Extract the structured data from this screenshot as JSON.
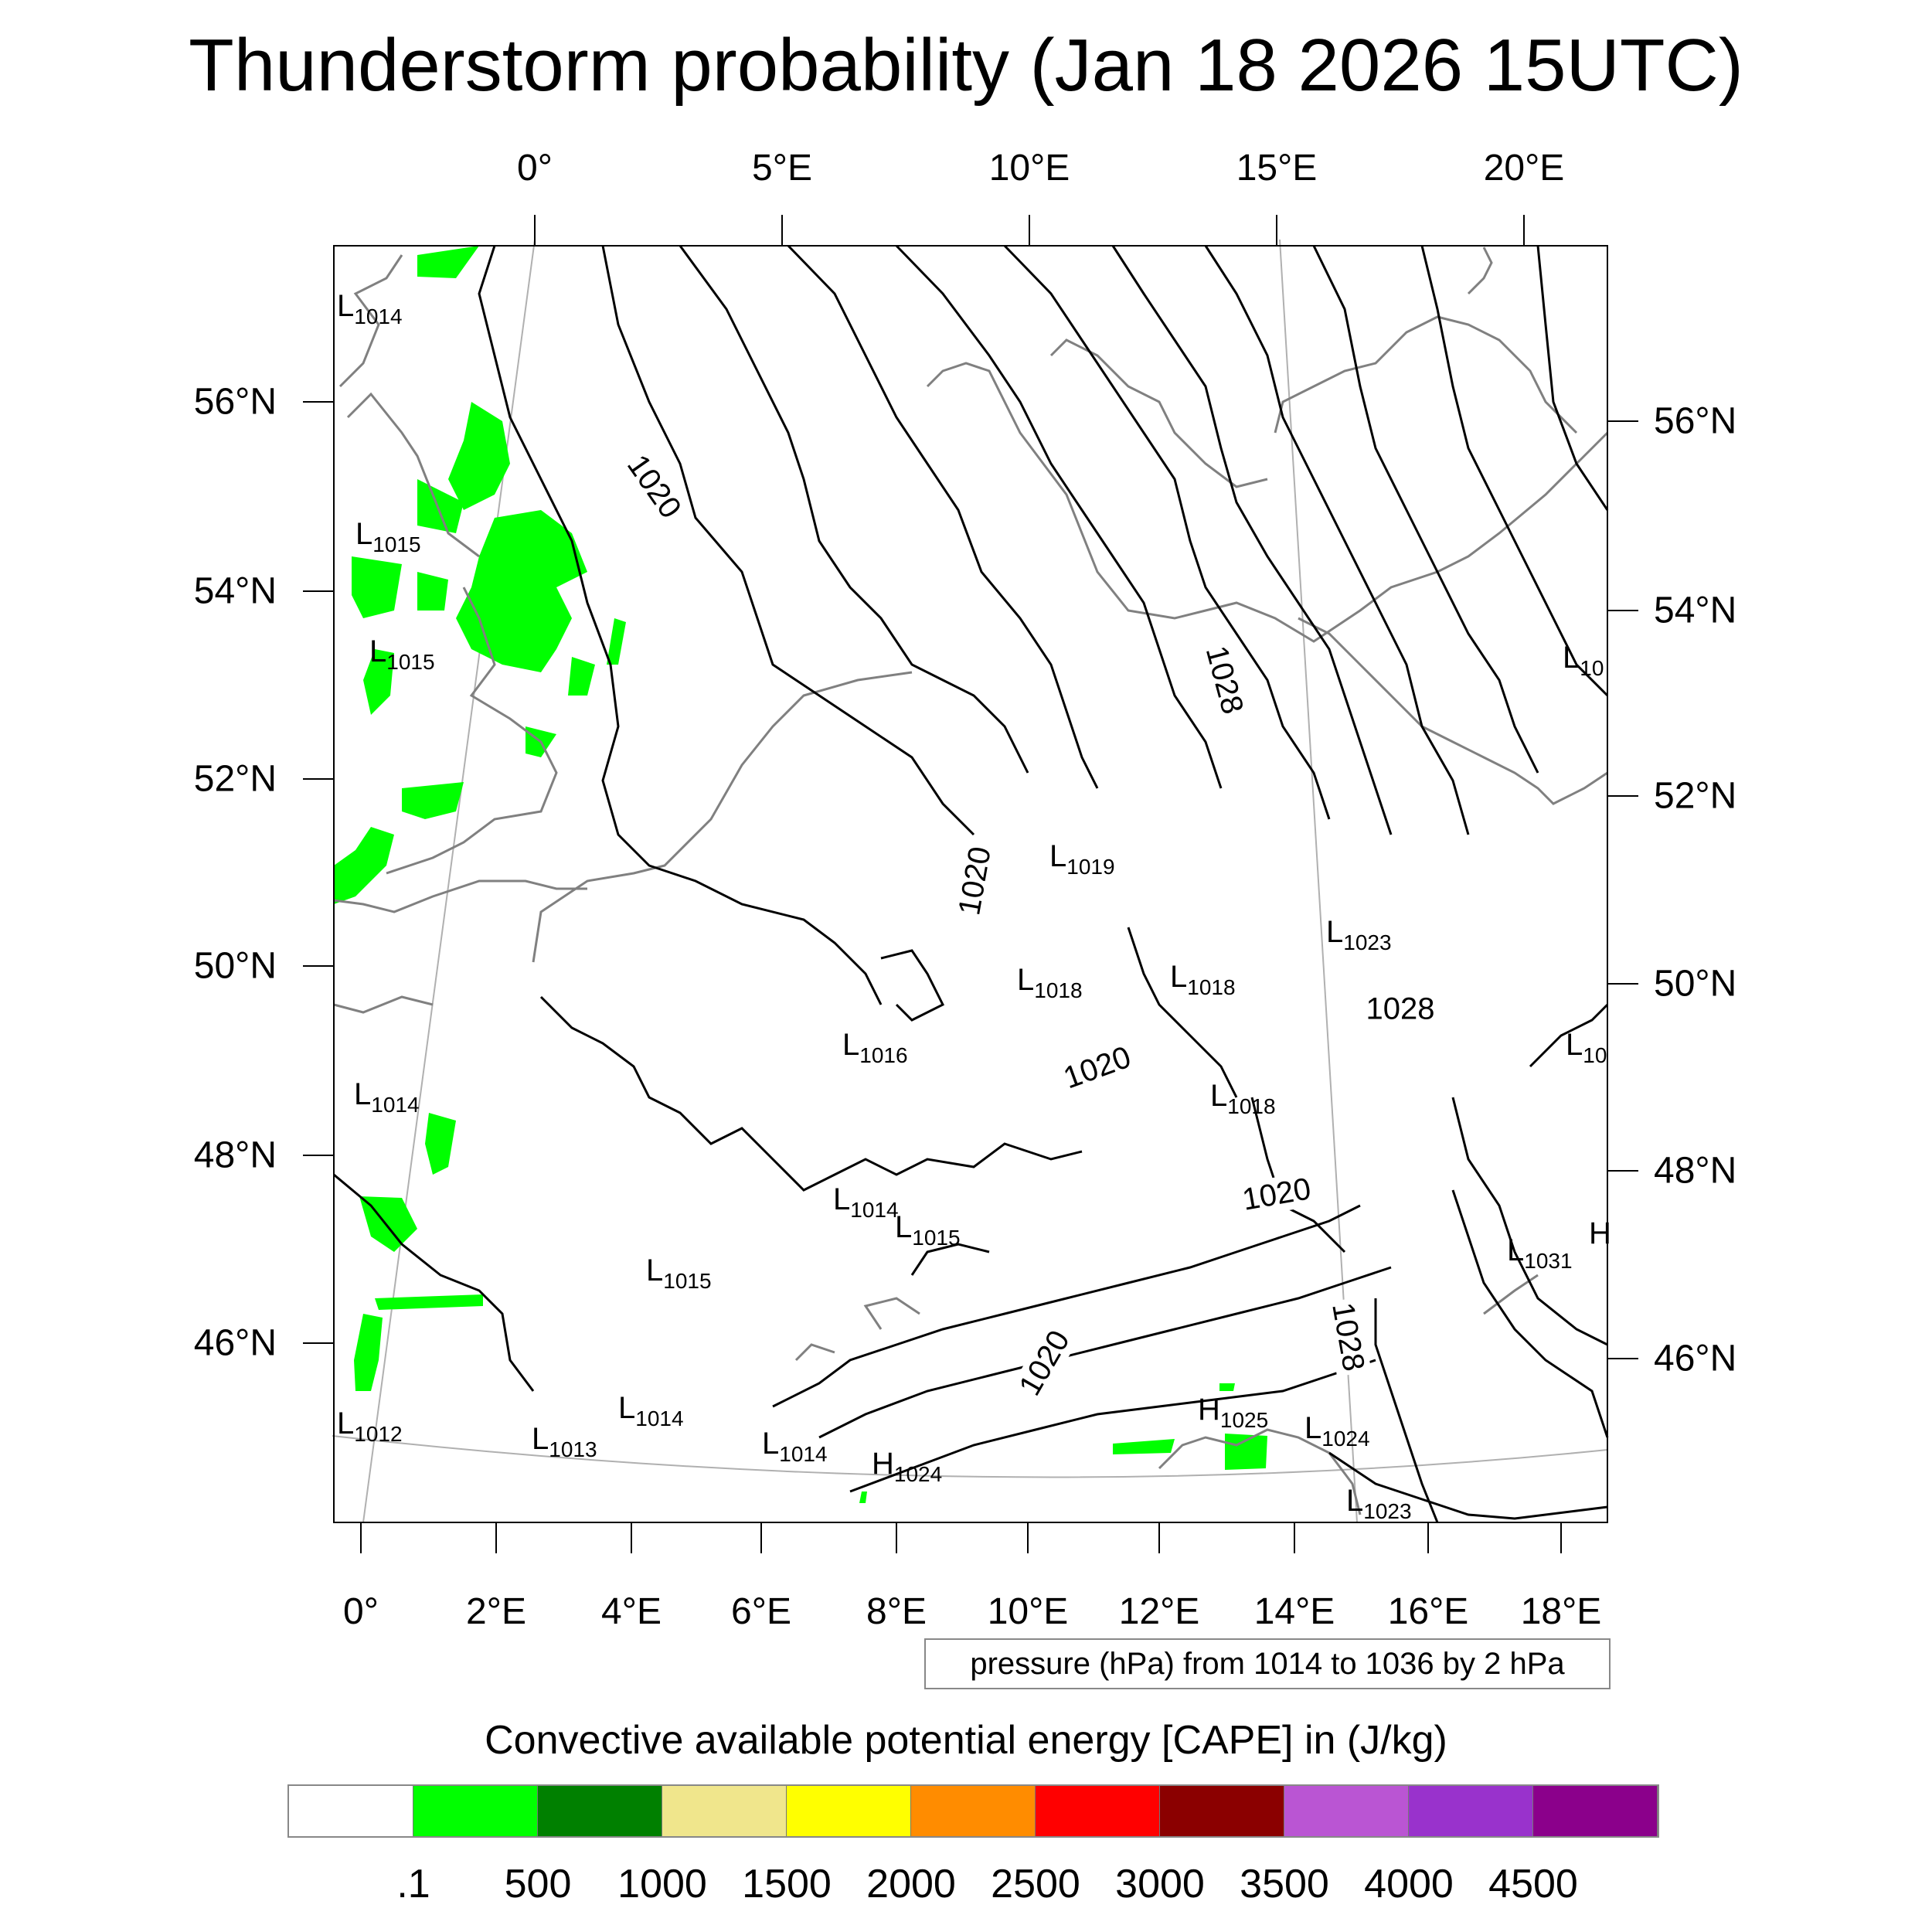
{
  "title": "Thunderstorm probability (Jan 18 2026 15UTC)",
  "axes": {
    "top_lon_labels": [
      "0°",
      "5°E",
      "10°E",
      "15°E",
      "20°E"
    ],
    "bottom_lon_labels": [
      "0°",
      "2°E",
      "4°E",
      "6°E",
      "8°E",
      "10°E",
      "12°E",
      "14°E",
      "16°E",
      "18°E"
    ],
    "left_lat_labels": [
      "56°N",
      "54°N",
      "52°N",
      "50°N",
      "48°N",
      "46°N"
    ],
    "right_lat_labels": [
      "56°N",
      "54°N",
      "52°N",
      "50°N",
      "48°N",
      "46°N"
    ]
  },
  "pressure_centers": [
    {
      "type": "L",
      "value": "1014"
    },
    {
      "type": "L",
      "value": "1015"
    },
    {
      "type": "L",
      "value": "1015"
    },
    {
      "type": "L",
      "value": "1019"
    },
    {
      "type": "L",
      "value": "1023"
    },
    {
      "type": "L",
      "value": "1018"
    },
    {
      "type": "L",
      "value": "1018"
    },
    {
      "type": "L",
      "value": "1016"
    },
    {
      "type": "L",
      "value": "1018"
    },
    {
      "type": "L",
      "value": "1014"
    },
    {
      "type": "L",
      "value": "1014"
    },
    {
      "type": "L",
      "value": "1015"
    },
    {
      "type": "L",
      "value": "1015"
    },
    {
      "type": "L",
      "value": "1031"
    },
    {
      "type": "L",
      "value": "1012"
    },
    {
      "type": "L",
      "value": "1013"
    },
    {
      "type": "L",
      "value": "1014"
    },
    {
      "type": "L",
      "value": "1014"
    },
    {
      "type": "H",
      "value": "1024"
    },
    {
      "type": "H",
      "value": "1025"
    },
    {
      "type": "L",
      "value": "1024"
    },
    {
      "type": "L",
      "value": "1023"
    },
    {
      "type": "L",
      "value": "10"
    },
    {
      "type": "L",
      "value": "10"
    },
    {
      "type": "H",
      "value": ""
    }
  ],
  "contour_labels": [
    "1020",
    "1028",
    "1020",
    "1028",
    "1020",
    "1020",
    "1020",
    "1028"
  ],
  "contour_info": "pressure (hPa) from 1014 to 1036 by 2 hPa",
  "colorbar": {
    "title": "Convective available potential energy [CAPE] in (J/kg)",
    "colors": [
      "#ffffff",
      "#00ff00",
      "#008000",
      "#f0e68c",
      "#ffff00",
      "#ff8c00",
      "#ff0000",
      "#8b0000",
      "#ba55d3",
      "#9932cc",
      "#8b008b"
    ],
    "labels": [
      ".1",
      "500",
      "1000",
      "1500",
      "2000",
      "2500",
      "3000",
      "3500",
      "4000",
      "4500"
    ]
  },
  "colors": {
    "cape_green": "#00ff00",
    "isobar": "#000000",
    "coastline": "#808080",
    "graticule": "#b0b0b0"
  }
}
